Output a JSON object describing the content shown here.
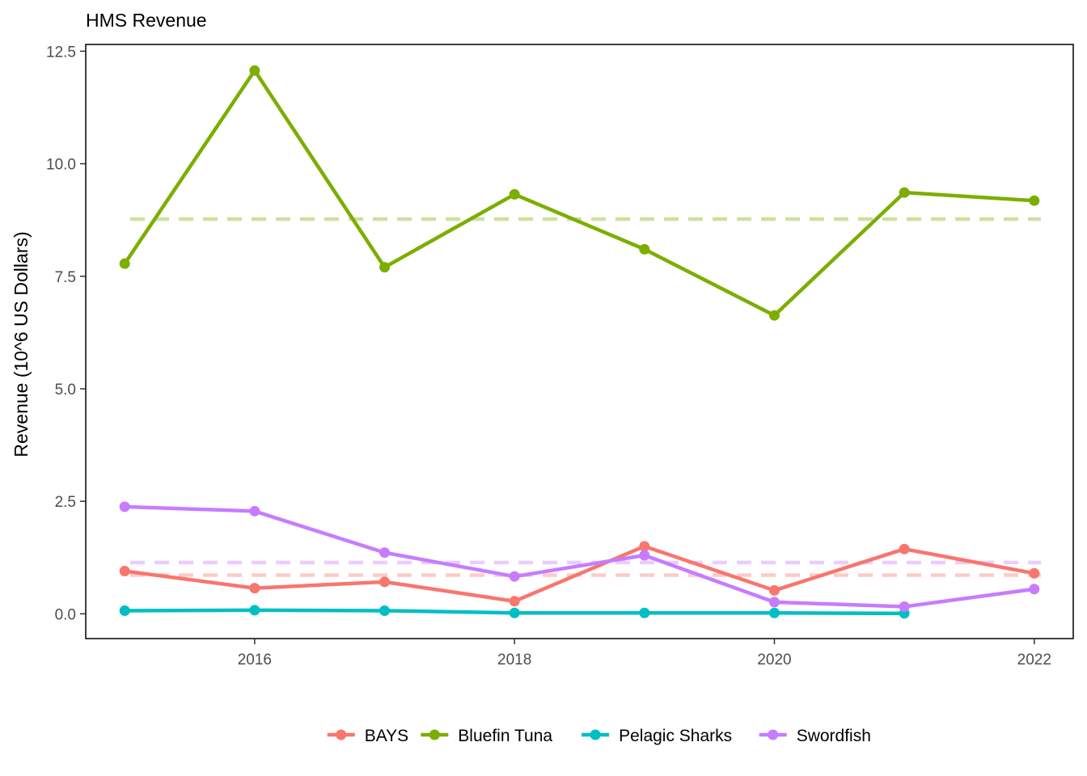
{
  "chart_data": {
    "type": "line",
    "title": "HMS Revenue",
    "xlabel": "",
    "ylabel": "Revenue (10^6 US Dollars)",
    "xlim": [
      2014.7,
      2022.3
    ],
    "ylim": [
      -0.55,
      12.65
    ],
    "x_ticks": [
      2016,
      2018,
      2020,
      2022
    ],
    "y_ticks": [
      0.0,
      2.5,
      5.0,
      7.5,
      10.0,
      12.5
    ],
    "y_tick_labels": [
      "0.0",
      "2.5",
      "5.0",
      "7.5",
      "10.0",
      "12.5"
    ],
    "grid": false,
    "legend_position": "bottom",
    "series": [
      {
        "name": "BAYS",
        "color": "#F8766D",
        "x": [
          2015,
          2016,
          2017,
          2018,
          2019,
          2020,
          2021,
          2022
        ],
        "values": [
          0.95,
          0.57,
          0.71,
          0.28,
          1.5,
          0.52,
          1.44,
          0.9
        ],
        "mean": 0.86
      },
      {
        "name": "Bluefin Tuna",
        "color": "#7CAE00",
        "x": [
          2015,
          2016,
          2017,
          2018,
          2019,
          2020,
          2021,
          2022
        ],
        "values": [
          7.78,
          12.07,
          7.7,
          9.32,
          8.1,
          6.63,
          9.36,
          9.18
        ],
        "mean": 8.77
      },
      {
        "name": "Pelagic Sharks",
        "color": "#00BFC4",
        "x": [
          2015,
          2016,
          2017,
          2018,
          2019,
          2020,
          2021
        ],
        "values": [
          0.07,
          0.08,
          0.07,
          0.02,
          0.02,
          0.02,
          0.01
        ],
        "mean": null
      },
      {
        "name": "Swordfish",
        "color": "#C77CFF",
        "x": [
          2015,
          2016,
          2017,
          2018,
          2019,
          2020,
          2021,
          2022
        ],
        "values": [
          2.38,
          2.28,
          1.36,
          0.83,
          1.3,
          0.26,
          0.16,
          0.55
        ],
        "mean": 1.14
      }
    ]
  }
}
